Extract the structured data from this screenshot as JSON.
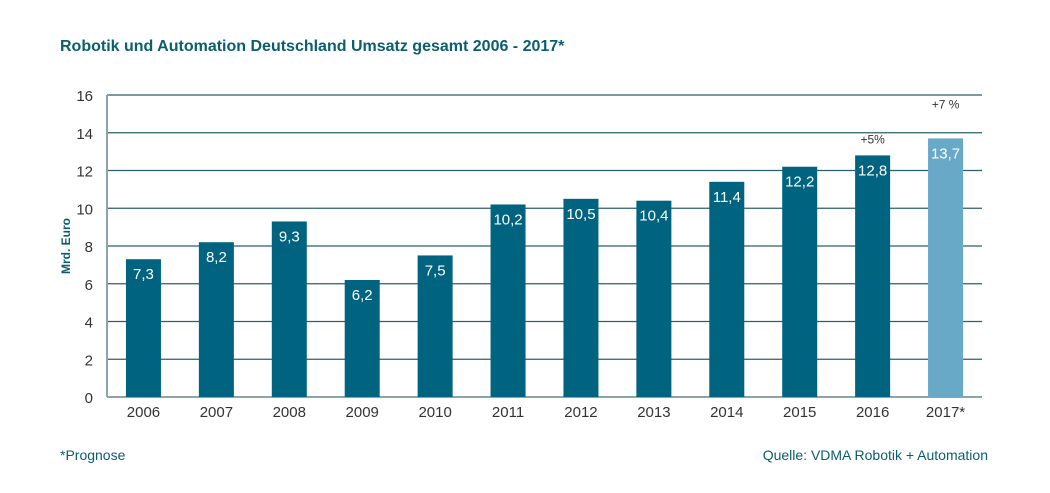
{
  "chart_data": {
    "type": "bar",
    "title": "Robotik und Automation Deutschland Umsatz gesamt 2006 - 2017*",
    "xlabel": "",
    "ylabel": "Mrd. Euro",
    "ylim": [
      0,
      16
    ],
    "yticks": [
      0,
      2,
      4,
      6,
      8,
      10,
      12,
      14,
      16
    ],
    "grid": true,
    "categories": [
      "2006",
      "2007",
      "2008",
      "2009",
      "2010",
      "2011",
      "2012",
      "2013",
      "2014",
      "2015",
      "2016",
      "2017*"
    ],
    "values": [
      7.3,
      8.2,
      9.3,
      6.2,
      7.5,
      10.2,
      10.5,
      10.4,
      11.4,
      12.2,
      12.8,
      13.7
    ],
    "data_labels": [
      "7,3",
      "8,2",
      "9,3",
      "6,2",
      "7,5",
      "10,2",
      "10,5",
      "10,4",
      "11,4",
      "12,2",
      "12,8",
      "13,7"
    ],
    "forecast": [
      false,
      false,
      false,
      false,
      false,
      false,
      false,
      false,
      false,
      false,
      false,
      true
    ],
    "annotations": [
      {
        "category": "2016",
        "text": "+5%"
      },
      {
        "category": "2017*",
        "text": "+7 %"
      }
    ],
    "colors": {
      "bar": "#00637f",
      "forecast_bar": "#69a9c8",
      "text": "#0b5e6e",
      "grid": "#2b5f6c",
      "axis": "#8ea3aa"
    }
  },
  "footnote": "*Prognose",
  "source": "Quelle: VDMA Robotik + Automation"
}
